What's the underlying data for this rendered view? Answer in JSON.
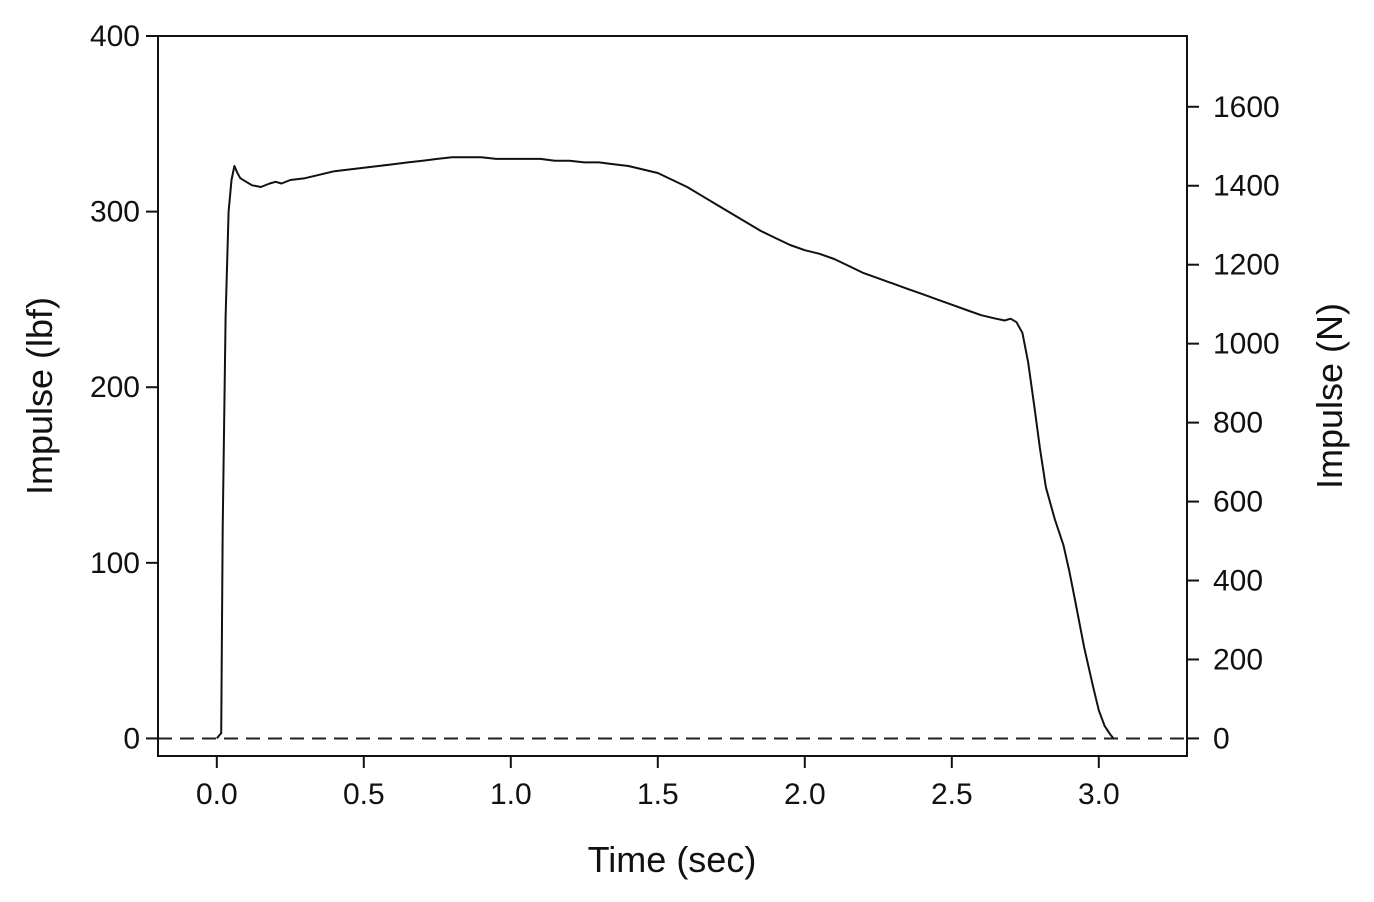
{
  "chart_data": {
    "type": "line",
    "title": "",
    "xlabel": "Time (sec)",
    "ylabel": "Impulse (lbf)",
    "y2label": "Impulse (N)",
    "xlim": [
      -0.2,
      3.3
    ],
    "ylim": [
      -10,
      400
    ],
    "y2lim": [
      -44.5,
      1779.3
    ],
    "x_ticks": [
      "0.0",
      "0.5",
      "1.0",
      "1.5",
      "2.0",
      "2.5",
      "3.0"
    ],
    "y_ticks": [
      "0",
      "100",
      "200",
      "300",
      "400"
    ],
    "y2_ticks": [
      "0",
      "200",
      "400",
      "600",
      "800",
      "1000",
      "1200",
      "1400",
      "1600"
    ],
    "grid": false,
    "legend": "none",
    "reference_line": {
      "y": 0,
      "style": "dashed"
    },
    "series": [
      {
        "x": [
          0.0,
          0.01,
          0.015,
          0.02,
          0.03,
          0.04,
          0.05,
          0.06,
          0.07,
          0.08,
          0.1,
          0.12,
          0.15,
          0.18,
          0.2,
          0.22,
          0.25,
          0.3,
          0.35,
          0.4,
          0.45,
          0.5,
          0.55,
          0.6,
          0.65,
          0.7,
          0.75,
          0.8,
          0.85,
          0.9,
          0.95,
          1.0,
          1.05,
          1.1,
          1.15,
          1.2,
          1.25,
          1.3,
          1.35,
          1.4,
          1.45,
          1.5,
          1.55,
          1.6,
          1.65,
          1.7,
          1.75,
          1.8,
          1.85,
          1.9,
          1.95,
          2.0,
          2.05,
          2.1,
          2.15,
          2.2,
          2.25,
          2.3,
          2.35,
          2.4,
          2.45,
          2.5,
          2.55,
          2.6,
          2.65,
          2.68,
          2.7,
          2.72,
          2.74,
          2.76,
          2.78,
          2.8,
          2.82,
          2.85,
          2.88,
          2.9,
          2.92,
          2.95,
          2.98,
          3.0,
          3.02,
          3.04,
          3.05
        ],
        "y": [
          0,
          2,
          3,
          120,
          240,
          300,
          318,
          326,
          322,
          319,
          317,
          315,
          314,
          316,
          317,
          316,
          318,
          319,
          321,
          323,
          324,
          325,
          326,
          327,
          328,
          329,
          330,
          331,
          331,
          331,
          330,
          330,
          330,
          330,
          329,
          329,
          328,
          328,
          327,
          326,
          324,
          322,
          318,
          314,
          309,
          304,
          299,
          294,
          289,
          285,
          281,
          278,
          276,
          273,
          269,
          265,
          262,
          259,
          256,
          253,
          250,
          247,
          244,
          241,
          239,
          238,
          239,
          237,
          231,
          214,
          190,
          165,
          143,
          125,
          110,
          95,
          78,
          52,
          30,
          16,
          7,
          2,
          0
        ]
      }
    ]
  }
}
